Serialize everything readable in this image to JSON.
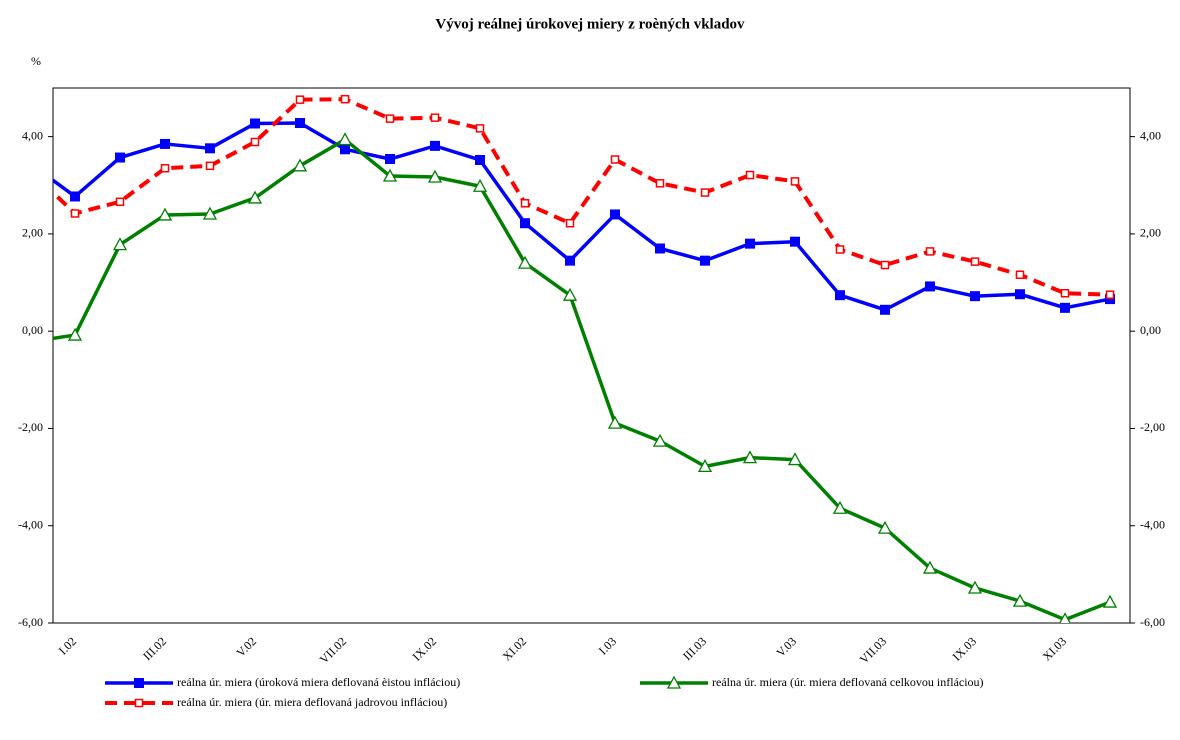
{
  "chart_data": {
    "type": "line",
    "title": "Vývoj reálnej úrokovej miery z roèných vkladov",
    "ylabel": "%",
    "categories": [
      null,
      "I.02",
      null,
      "III.02",
      null,
      "V.02",
      null,
      "VII.02",
      null,
      "IX.02",
      null,
      "XI.02",
      null,
      "I.03",
      null,
      "III.03",
      null,
      "V.03",
      null,
      "VII.03",
      null,
      "IX.03",
      null,
      "XI.03",
      null
    ],
    "ylim": [
      -6,
      5
    ],
    "yticks": [
      {
        "value": -6,
        "label": "-6,00"
      },
      {
        "value": -4,
        "label": "-4,00"
      },
      {
        "value": -2,
        "label": "-2,00"
      },
      {
        "value": 0,
        "label": "0,00"
      },
      {
        "value": 2,
        "label": "2,00"
      },
      {
        "value": 4,
        "label": "4,00"
      }
    ],
    "y2lim": [
      -6,
      5
    ],
    "y2ticks": [
      {
        "value": -6,
        "label": "-6,00"
      },
      {
        "value": -4,
        "label": "-4,00"
      },
      {
        "value": -2,
        "label": "-2,00"
      },
      {
        "value": 0,
        "label": "0,00"
      },
      {
        "value": 2,
        "label": "2,00"
      },
      {
        "value": 4,
        "label": "4,00"
      }
    ],
    "series": [
      {
        "name": "reálna úr. miera (úroková miera deflovaná èistou infláciou)",
        "color": "#0000ff",
        "marker": "square",
        "dash": false,
        "values": [
          3.45,
          2.77,
          3.57,
          3.85,
          3.76,
          4.27,
          4.28,
          3.74,
          3.54,
          3.81,
          3.52,
          2.22,
          1.45,
          2.4,
          1.7,
          1.45,
          1.8,
          1.84,
          0.74,
          0.44,
          0.92,
          0.72,
          0.76,
          0.48,
          0.66
        ]
      },
      {
        "name": "reálna úr. miera (úr. miera deflovaná jadrovou infláciou)",
        "color": "#ff0000",
        "marker": "open-square",
        "dash": true,
        "values": [
          3.3,
          2.42,
          2.66,
          3.35,
          3.4,
          3.89,
          4.76,
          4.77,
          4.37,
          4.39,
          4.17,
          2.63,
          2.22,
          3.53,
          3.04,
          2.85,
          3.21,
          3.08,
          1.68,
          1.36,
          1.64,
          1.43,
          1.16,
          0.78,
          0.75
        ]
      },
      {
        "name": "reálna úr. miera (úr. miera deflovaná celkovou  infláciou)",
        "color": "#008000",
        "marker": "open-triangle",
        "dash": false,
        "values": [
          -0.22,
          -0.08,
          1.78,
          2.39,
          2.41,
          2.74,
          3.4,
          3.94,
          3.19,
          3.17,
          2.98,
          1.4,
          0.74,
          -1.89,
          -2.26,
          -2.78,
          -2.6,
          -2.64,
          -3.64,
          -4.05,
          -4.87,
          -5.28,
          -5.55,
          -5.93,
          -5.57
        ]
      }
    ]
  }
}
